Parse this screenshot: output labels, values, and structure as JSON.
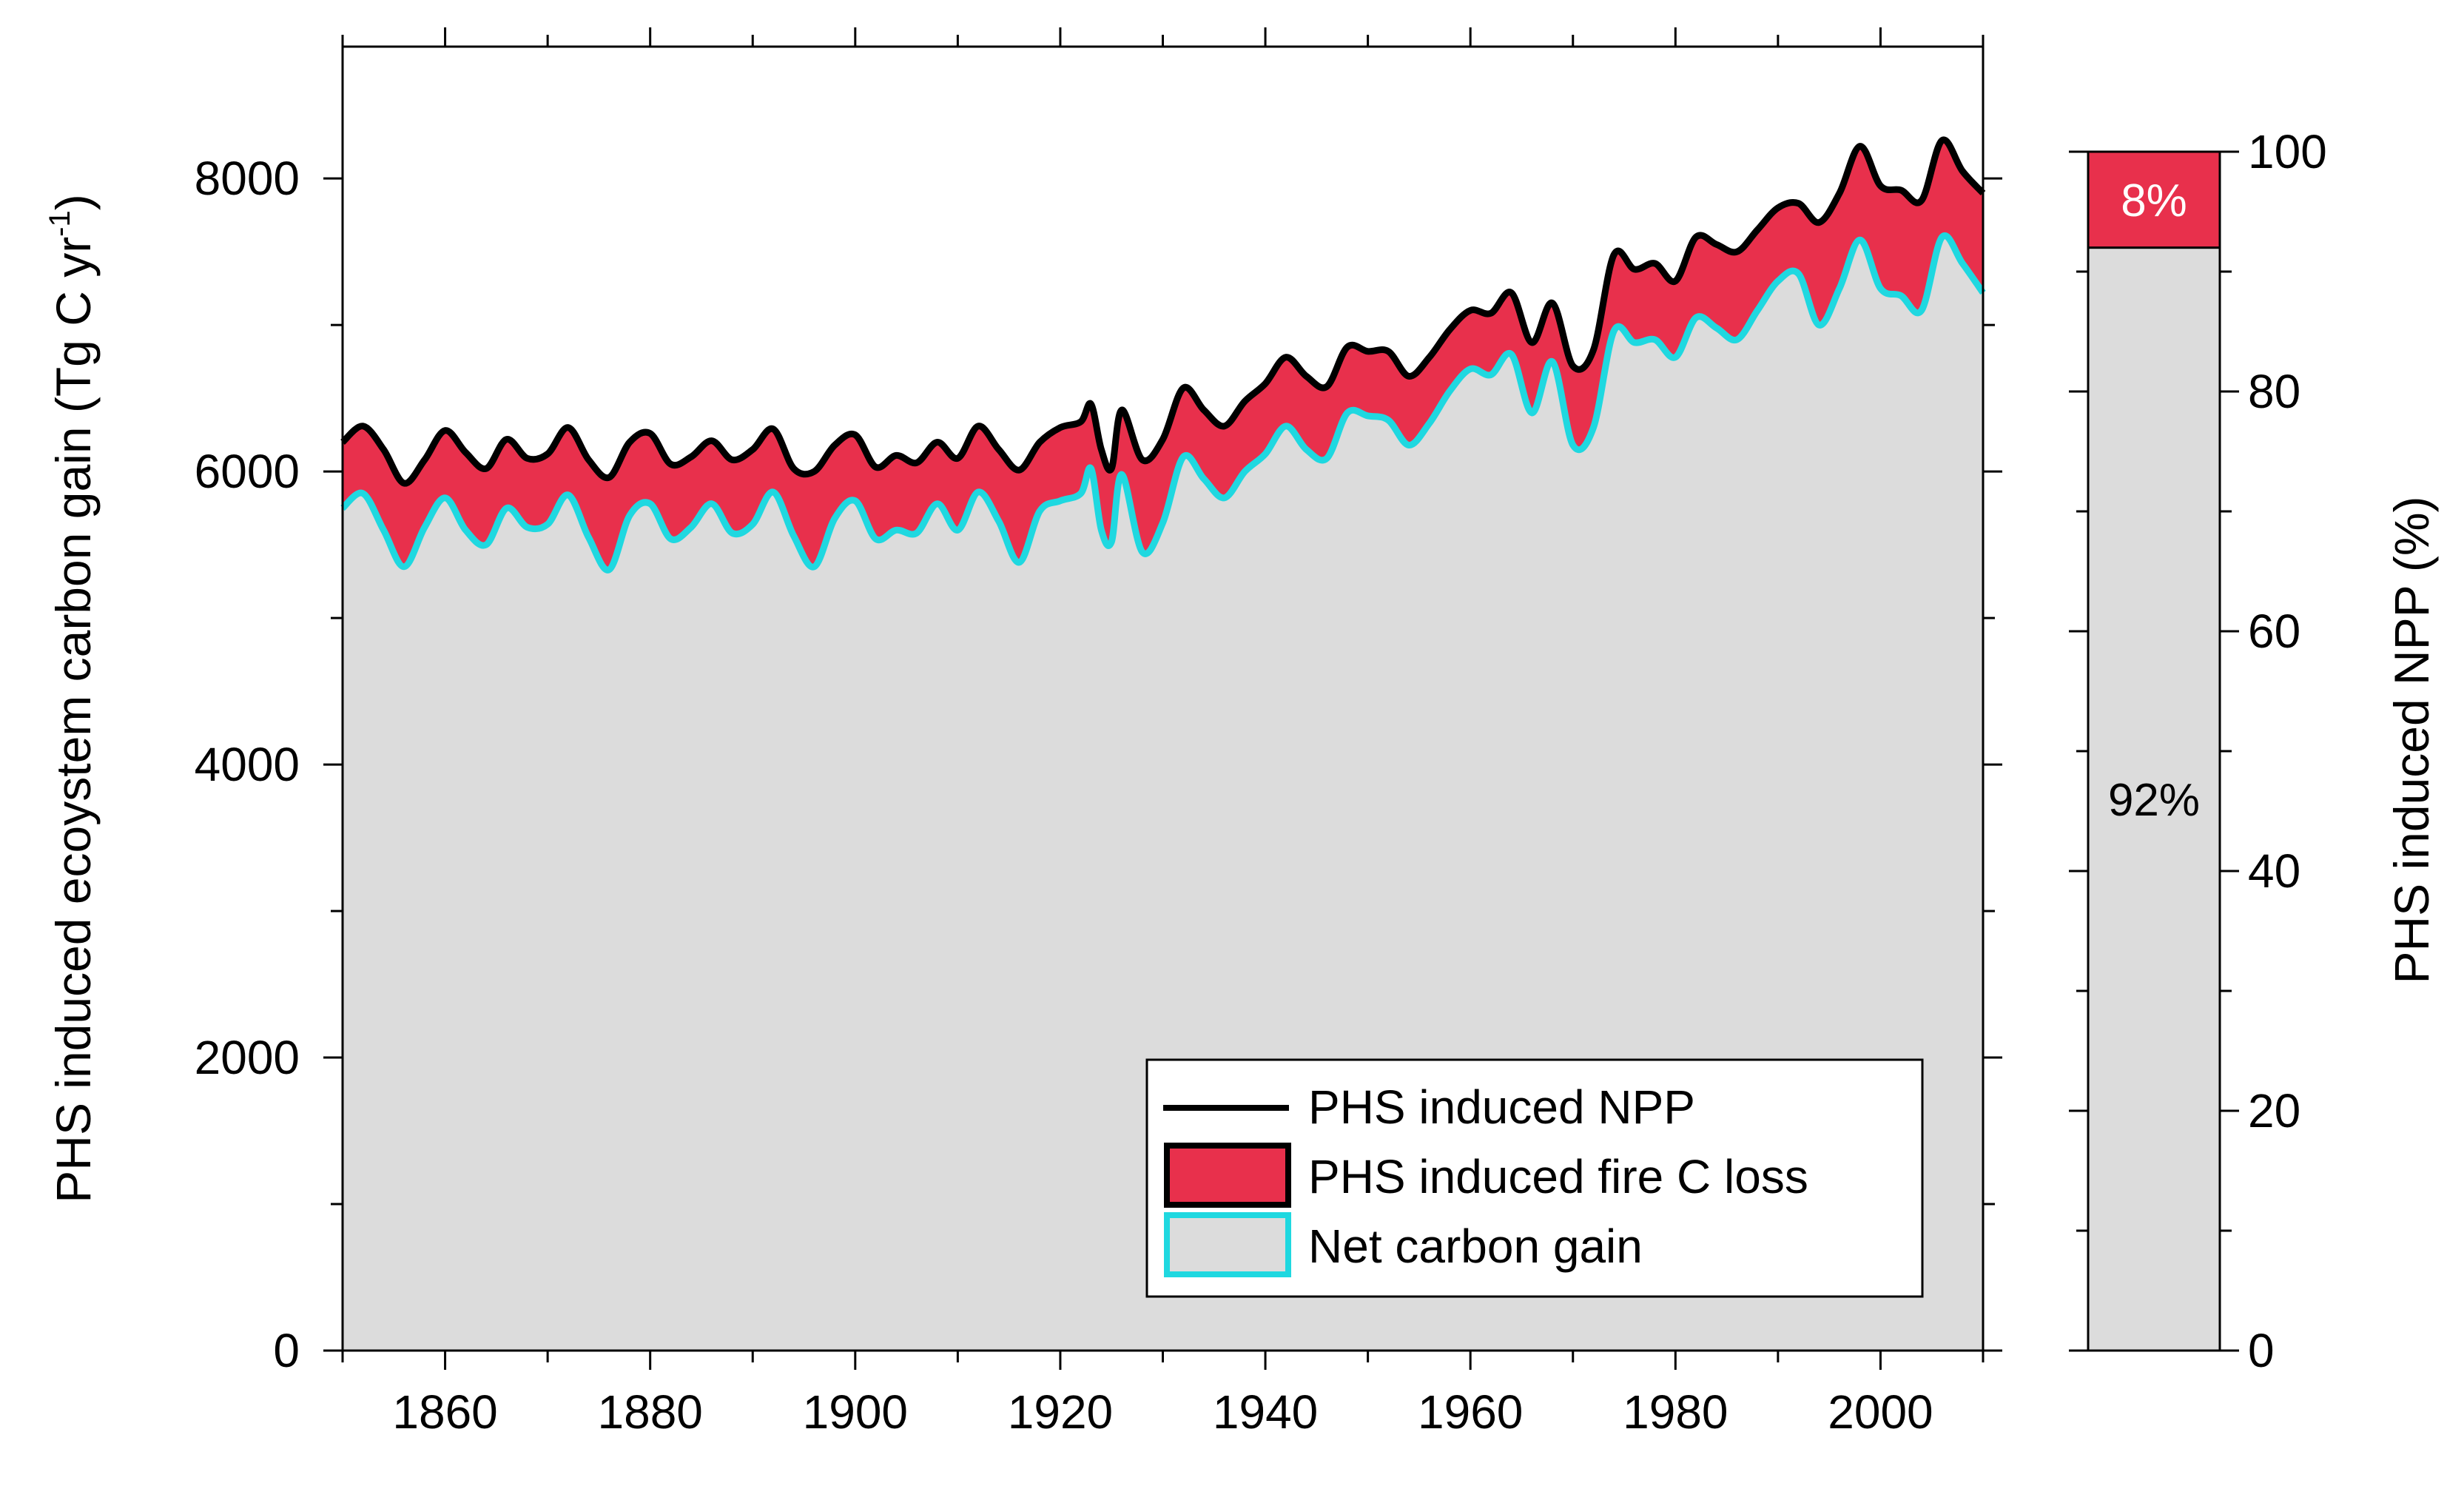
{
  "chart_data": [
    {
      "type": "area",
      "title": "",
      "xlabel": "",
      "ylabel_main": "PHS induced ecoystem carbon gain (Tg C yr",
      "ylabel_sup": "-1",
      "ylabel_close": ")",
      "xlim": [
        1850,
        2010
      ],
      "ylim": [
        0,
        8900
      ],
      "xticks": [
        1860,
        1880,
        1900,
        1920,
        1940,
        1960,
        1980,
        2000
      ],
      "yticks": [
        0,
        2000,
        4000,
        6000,
        8000
      ],
      "xtick_labels": [
        "1860",
        "1880",
        "1900",
        "1920",
        "1940",
        "1960",
        "1980",
        "2000"
      ],
      "ytick_labels": [
        "0",
        "2000",
        "4000",
        "6000",
        "8000"
      ],
      "grid": false,
      "legend_position": "bottom-right",
      "colors": {
        "npp": "#000000",
        "fire": "#e8304c",
        "net": "#dcdcdc",
        "net_line": "#1fd8e0"
      },
      "series": [
        {
          "name": "PHS induced NPP",
          "points": [
            [
              1850,
              6200
            ],
            [
              1852,
              6310
            ],
            [
              1854,
              6150
            ],
            [
              1856,
              5920
            ],
            [
              1858,
              6080
            ],
            [
              1860,
              6280
            ],
            [
              1862,
              6130
            ],
            [
              1864,
              6020
            ],
            [
              1866,
              6220
            ],
            [
              1868,
              6090
            ],
            [
              1870,
              6120
            ],
            [
              1872,
              6300
            ],
            [
              1874,
              6080
            ],
            [
              1876,
              5960
            ],
            [
              1878,
              6200
            ],
            [
              1880,
              6260
            ],
            [
              1882,
              6050
            ],
            [
              1884,
              6100
            ],
            [
              1886,
              6210
            ],
            [
              1888,
              6080
            ],
            [
              1890,
              6150
            ],
            [
              1892,
              6290
            ],
            [
              1894,
              6020
            ],
            [
              1896,
              6000
            ],
            [
              1898,
              6180
            ],
            [
              1900,
              6250
            ],
            [
              1902,
              6030
            ],
            [
              1904,
              6110
            ],
            [
              1906,
              6060
            ],
            [
              1908,
              6200
            ],
            [
              1910,
              6090
            ],
            [
              1912,
              6310
            ],
            [
              1914,
              6150
            ],
            [
              1916,
              6010
            ],
            [
              1918,
              6200
            ],
            [
              1920,
              6300
            ],
            [
              1922,
              6340
            ],
            [
              1923,
              6460
            ],
            [
              1924,
              6150
            ],
            [
              1925,
              6020
            ],
            [
              1926,
              6420
            ],
            [
              1928,
              6080
            ],
            [
              1930,
              6220
            ],
            [
              1932,
              6570
            ],
            [
              1934,
              6420
            ],
            [
              1936,
              6310
            ],
            [
              1938,
              6480
            ],
            [
              1940,
              6600
            ],
            [
              1942,
              6780
            ],
            [
              1944,
              6650
            ],
            [
              1946,
              6580
            ],
            [
              1948,
              6850
            ],
            [
              1950,
              6820
            ],
            [
              1952,
              6820
            ],
            [
              1954,
              6650
            ],
            [
              1956,
              6780
            ],
            [
              1958,
              6970
            ],
            [
              1960,
              7100
            ],
            [
              1962,
              7080
            ],
            [
              1964,
              7220
            ],
            [
              1966,
              6880
            ],
            [
              1968,
              7150
            ],
            [
              1970,
              6720
            ],
            [
              1972,
              6830
            ],
            [
              1974,
              7480
            ],
            [
              1976,
              7380
            ],
            [
              1978,
              7420
            ],
            [
              1980,
              7300
            ],
            [
              1982,
              7600
            ],
            [
              1984,
              7550
            ],
            [
              1986,
              7500
            ],
            [
              1988,
              7650
            ],
            [
              1990,
              7800
            ],
            [
              1992,
              7830
            ],
            [
              1994,
              7700
            ],
            [
              1996,
              7900
            ],
            [
              1998,
              8220
            ],
            [
              2000,
              7950
            ],
            [
              2002,
              7920
            ],
            [
              2004,
              7850
            ],
            [
              2006,
              8260
            ],
            [
              2008,
              8050
            ],
            [
              2010,
              7900
            ]
          ]
        },
        {
          "name": "Net carbon gain",
          "points": [
            [
              1850,
              5750
            ],
            [
              1852,
              5850
            ],
            [
              1854,
              5600
            ],
            [
              1856,
              5350
            ],
            [
              1858,
              5620
            ],
            [
              1860,
              5820
            ],
            [
              1862,
              5600
            ],
            [
              1864,
              5500
            ],
            [
              1866,
              5750
            ],
            [
              1868,
              5620
            ],
            [
              1870,
              5640
            ],
            [
              1872,
              5840
            ],
            [
              1874,
              5550
            ],
            [
              1876,
              5330
            ],
            [
              1878,
              5700
            ],
            [
              1880,
              5780
            ],
            [
              1882,
              5540
            ],
            [
              1884,
              5620
            ],
            [
              1886,
              5780
            ],
            [
              1888,
              5580
            ],
            [
              1890,
              5640
            ],
            [
              1892,
              5860
            ],
            [
              1894,
              5560
            ],
            [
              1896,
              5350
            ],
            [
              1898,
              5680
            ],
            [
              1900,
              5800
            ],
            [
              1902,
              5540
            ],
            [
              1904,
              5600
            ],
            [
              1906,
              5580
            ],
            [
              1908,
              5780
            ],
            [
              1910,
              5600
            ],
            [
              1912,
              5860
            ],
            [
              1914,
              5660
            ],
            [
              1916,
              5380
            ],
            [
              1918,
              5730
            ],
            [
              1920,
              5800
            ],
            [
              1922,
              5850
            ],
            [
              1923,
              6020
            ],
            [
              1924,
              5600
            ],
            [
              1925,
              5520
            ],
            [
              1926,
              5980
            ],
            [
              1928,
              5450
            ],
            [
              1930,
              5650
            ],
            [
              1932,
              6100
            ],
            [
              1934,
              5950
            ],
            [
              1936,
              5820
            ],
            [
              1938,
              6000
            ],
            [
              1940,
              6120
            ],
            [
              1942,
              6310
            ],
            [
              1944,
              6150
            ],
            [
              1946,
              6090
            ],
            [
              1948,
              6400
            ],
            [
              1950,
              6380
            ],
            [
              1952,
              6350
            ],
            [
              1954,
              6180
            ],
            [
              1956,
              6330
            ],
            [
              1958,
              6550
            ],
            [
              1960,
              6700
            ],
            [
              1962,
              6660
            ],
            [
              1964,
              6800
            ],
            [
              1966,
              6400
            ],
            [
              1968,
              6750
            ],
            [
              1970,
              6180
            ],
            [
              1972,
              6300
            ],
            [
              1974,
              6960
            ],
            [
              1976,
              6880
            ],
            [
              1978,
              6900
            ],
            [
              1980,
              6780
            ],
            [
              1982,
              7050
            ],
            [
              1984,
              6980
            ],
            [
              1986,
              6900
            ],
            [
              1988,
              7100
            ],
            [
              1990,
              7300
            ],
            [
              1992,
              7350
            ],
            [
              1994,
              7000
            ],
            [
              1996,
              7250
            ],
            [
              1998,
              7580
            ],
            [
              2000,
              7250
            ],
            [
              2002,
              7200
            ],
            [
              2004,
              7100
            ],
            [
              2006,
              7600
            ],
            [
              2008,
              7420
            ],
            [
              2010,
              7220
            ]
          ]
        }
      ],
      "annotations": []
    },
    {
      "type": "bar",
      "title": "",
      "ylabel": "PHS induced NPP (%)",
      "ylim": [
        0,
        100
      ],
      "yticks": [
        0,
        20,
        40,
        60,
        80,
        100
      ],
      "ytick_labels": [
        "0",
        "20",
        "40",
        "60",
        "80",
        "100"
      ],
      "categories": [
        ""
      ],
      "series": [
        {
          "name": "Net carbon gain",
          "values": [
            92
          ],
          "label": "92%"
        },
        {
          "name": "PHS induced fire C loss",
          "values": [
            8
          ],
          "label": "8%"
        }
      ]
    }
  ],
  "legend": {
    "items": [
      {
        "label": "PHS induced NPP",
        "kind": "line"
      },
      {
        "label": "PHS induced fire C loss",
        "kind": "fire"
      },
      {
        "label": "Net carbon gain",
        "kind": "net"
      }
    ]
  }
}
